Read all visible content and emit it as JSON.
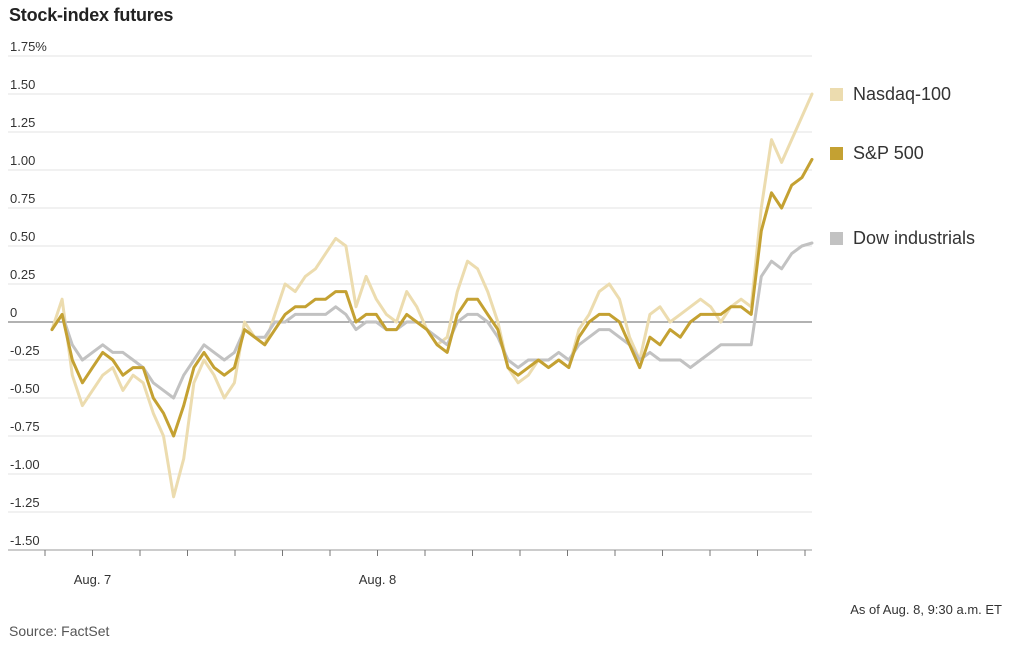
{
  "title": "Stock-index futures",
  "footer": {
    "as_of": "As of Aug. 8, 9:30 a.m. ET",
    "source": "Source: FactSet"
  },
  "chart_data": {
    "type": "line",
    "title": "Stock-index futures",
    "xlabel": "",
    "ylabel": "",
    "y_unit": "%",
    "ylim": [
      -1.5,
      1.75
    ],
    "y_ticks": [
      {
        "value": 1.75,
        "label": "1.75%"
      },
      {
        "value": 1.5,
        "label": "1.50"
      },
      {
        "value": 1.25,
        "label": "1.25"
      },
      {
        "value": 1.0,
        "label": "1.00"
      },
      {
        "value": 0.75,
        "label": "0.75"
      },
      {
        "value": 0.5,
        "label": "0.50"
      },
      {
        "value": 0.25,
        "label": "0.25"
      },
      {
        "value": 0,
        "label": "0"
      },
      {
        "value": -0.25,
        "label": "-0.25"
      },
      {
        "value": -0.5,
        "label": "-0.50"
      },
      {
        "value": -0.75,
        "label": "-0.75"
      },
      {
        "value": -1.0,
        "label": "-1.00"
      },
      {
        "value": -1.25,
        "label": "-1.25"
      },
      {
        "value": -1.5,
        "label": "-1.50"
      }
    ],
    "x_tick_count": 17,
    "x_labels": [
      {
        "tick_index": 1,
        "label": "Aug. 7"
      },
      {
        "tick_index": 7,
        "label": "Aug. 8"
      }
    ],
    "legend_position": "right",
    "grid": true,
    "series": [
      {
        "name": "Nasdaq-100",
        "color": "#ecdcaf",
        "values": [
          -0.05,
          0.15,
          -0.35,
          -0.55,
          -0.45,
          -0.35,
          -0.3,
          -0.45,
          -0.35,
          -0.4,
          -0.6,
          -0.75,
          -1.15,
          -0.9,
          -0.4,
          -0.25,
          -0.35,
          -0.5,
          -0.4,
          0.0,
          -0.1,
          -0.15,
          0.05,
          0.25,
          0.2,
          0.3,
          0.35,
          0.45,
          0.55,
          0.5,
          0.1,
          0.3,
          0.15,
          0.05,
          0.0,
          0.2,
          0.1,
          -0.05,
          -0.15,
          -0.1,
          0.2,
          0.4,
          0.35,
          0.2,
          0.0,
          -0.3,
          -0.4,
          -0.35,
          -0.25,
          -0.3,
          -0.25,
          -0.3,
          -0.05,
          0.05,
          0.2,
          0.25,
          0.15,
          -0.1,
          -0.25,
          0.05,
          0.1,
          0.0,
          0.05,
          0.1,
          0.15,
          0.1,
          0.0,
          0.1,
          0.15,
          0.1,
          0.75,
          1.2,
          1.05,
          1.2,
          1.35,
          1.5
        ]
      },
      {
        "name": "S&P 500",
        "color": "#c4a132",
        "values": [
          -0.05,
          0.05,
          -0.25,
          -0.4,
          -0.3,
          -0.2,
          -0.25,
          -0.35,
          -0.3,
          -0.3,
          -0.5,
          -0.6,
          -0.75,
          -0.55,
          -0.3,
          -0.2,
          -0.3,
          -0.35,
          -0.3,
          -0.05,
          -0.1,
          -0.15,
          -0.05,
          0.05,
          0.1,
          0.1,
          0.15,
          0.15,
          0.2,
          0.2,
          0.0,
          0.05,
          0.05,
          -0.05,
          -0.05,
          0.05,
          0.0,
          -0.05,
          -0.15,
          -0.2,
          0.05,
          0.15,
          0.15,
          0.05,
          -0.05,
          -0.3,
          -0.35,
          -0.3,
          -0.25,
          -0.3,
          -0.25,
          -0.3,
          -0.1,
          0.0,
          0.05,
          0.05,
          0.0,
          -0.15,
          -0.3,
          -0.1,
          -0.15,
          -0.05,
          -0.1,
          0.0,
          0.05,
          0.05,
          0.05,
          0.1,
          0.1,
          0.05,
          0.6,
          0.85,
          0.75,
          0.9,
          0.95,
          1.07
        ]
      },
      {
        "name": "Dow industrials",
        "color": "#c2c2c2",
        "values": [
          -0.05,
          0.05,
          -0.15,
          -0.25,
          -0.2,
          -0.15,
          -0.2,
          -0.2,
          -0.25,
          -0.3,
          -0.4,
          -0.45,
          -0.5,
          -0.35,
          -0.25,
          -0.15,
          -0.2,
          -0.25,
          -0.2,
          -0.05,
          -0.1,
          -0.1,
          0.0,
          0.0,
          0.05,
          0.05,
          0.05,
          0.05,
          0.1,
          0.05,
          -0.05,
          0.0,
          0.0,
          -0.05,
          -0.05,
          0.0,
          0.0,
          -0.05,
          -0.1,
          -0.15,
          0.0,
          0.05,
          0.05,
          0.0,
          -0.1,
          -0.25,
          -0.3,
          -0.25,
          -0.25,
          -0.25,
          -0.2,
          -0.25,
          -0.15,
          -0.1,
          -0.05,
          -0.05,
          -0.1,
          -0.15,
          -0.25,
          -0.2,
          -0.25,
          -0.25,
          -0.25,
          -0.3,
          -0.25,
          -0.2,
          -0.15,
          -0.15,
          -0.15,
          -0.15,
          0.3,
          0.4,
          0.35,
          0.45,
          0.5,
          0.52
        ]
      }
    ]
  }
}
